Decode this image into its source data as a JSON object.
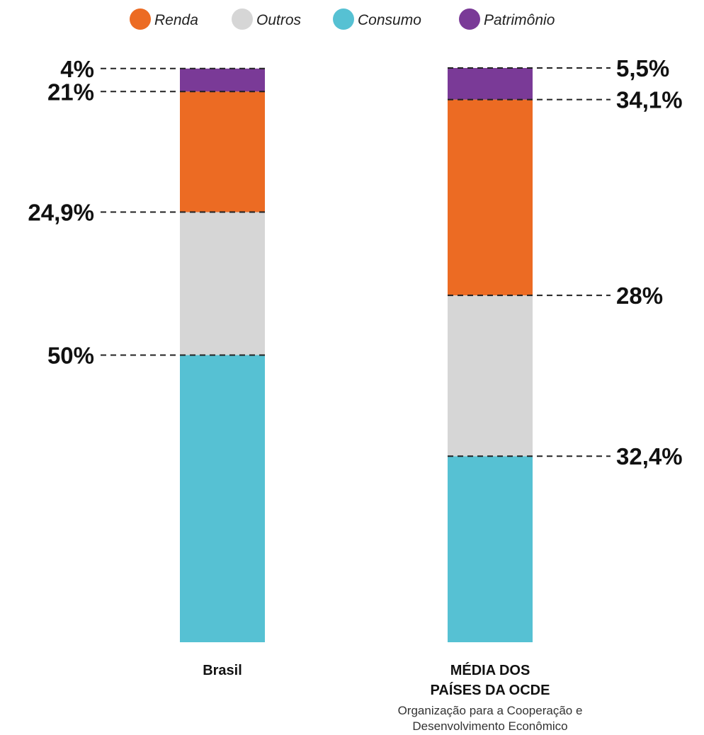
{
  "chart_data": {
    "type": "bar",
    "stacked": true,
    "categories": [
      "Brasil",
      "MÉDIA DOS PAÍSES DA OCDE"
    ],
    "category_label_lines": [
      [
        "Brasil"
      ],
      [
        "MÉDIA DOS",
        "PAÍSES DA OCDE"
      ]
    ],
    "category_subtitle": [
      "",
      "Organização para a Cooperação e Desenvolvimento Econômico"
    ],
    "category_subtitle_lines": [
      [],
      [
        "Organização para a Cooperação e",
        "Desenvolvimento Econômico"
      ]
    ],
    "series": [
      {
        "name": "Consumo",
        "color": "#56c1d3",
        "values": [
          50,
          32.4
        ],
        "labels": [
          "50%",
          "32,4%"
        ]
      },
      {
        "name": "Outros",
        "color": "#d6d6d6",
        "values": [
          24.9,
          28
        ],
        "labels": [
          "24,9%",
          "28%"
        ]
      },
      {
        "name": "Renda",
        "color": "#ec6b23",
        "values": [
          21,
          34.1
        ],
        "labels": [
          "21%",
          "34,1%"
        ]
      },
      {
        "name": "Patrimônio",
        "color": "#7a3a97",
        "values": [
          4,
          5.5
        ],
        "labels": [
          "4%",
          "5,5%"
        ]
      }
    ],
    "legend": {
      "order": [
        "Renda",
        "Outros",
        "Consumo",
        "Patrimônio"
      ],
      "position": "top"
    },
    "ylim": [
      0,
      100
    ],
    "label_side": [
      "left",
      "right"
    ],
    "grid": false
  }
}
